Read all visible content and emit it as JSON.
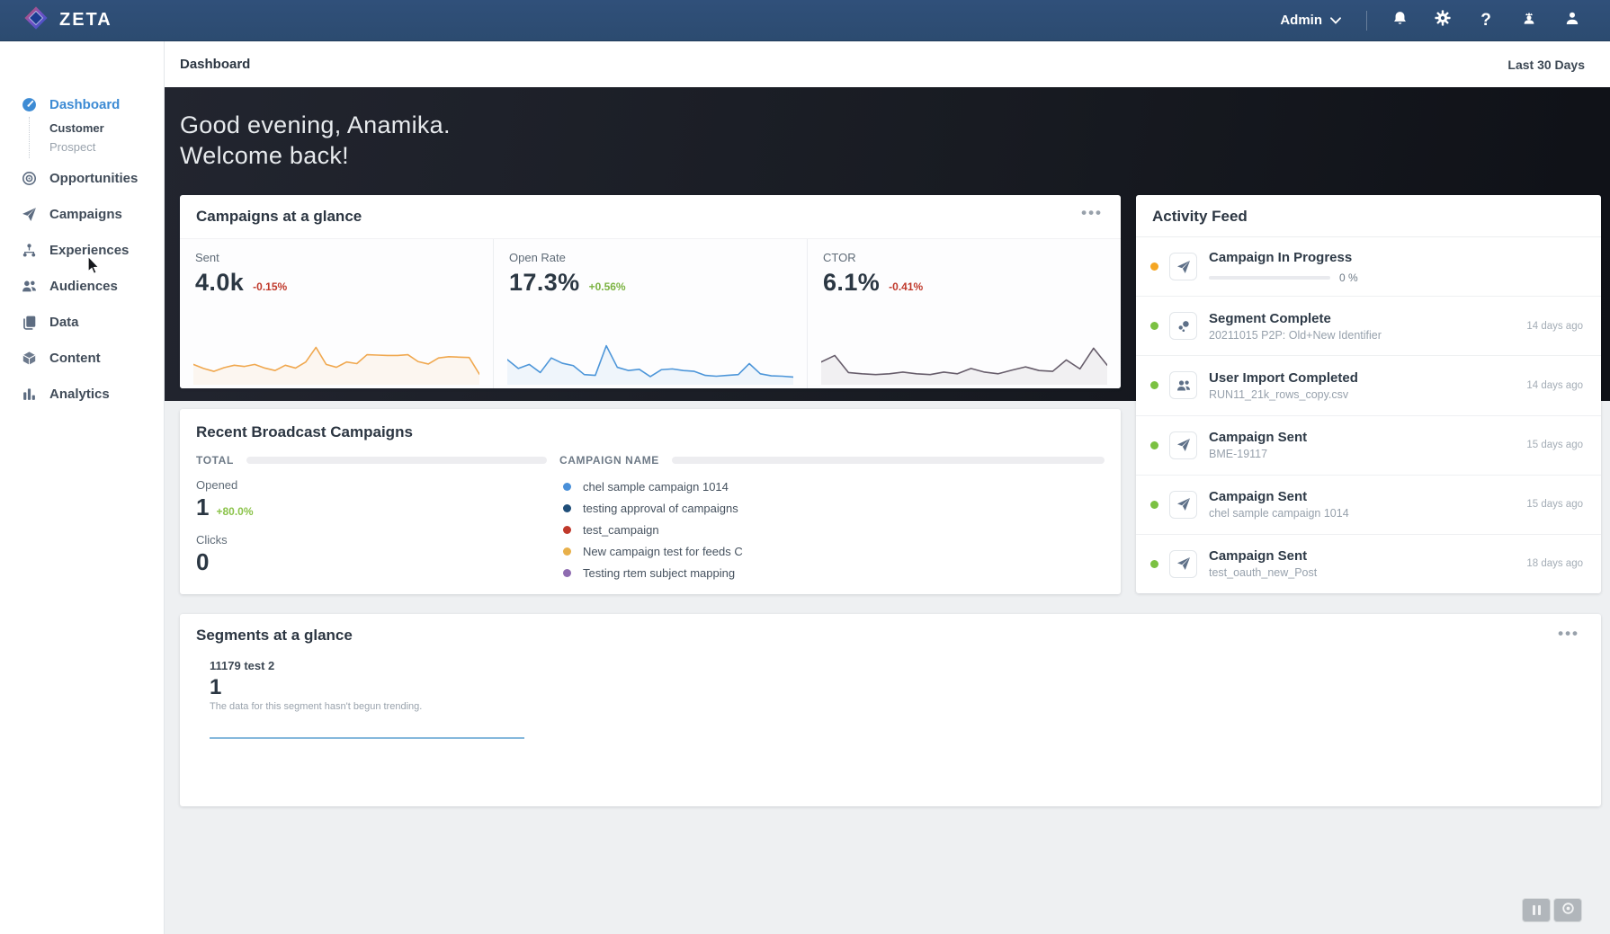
{
  "brand": {
    "name": "ZETA"
  },
  "topbar": {
    "user_menu_label": "Admin",
    "icons": [
      "bell-icon",
      "gear-icon",
      "help-icon",
      "admin-user-icon",
      "profile-icon"
    ]
  },
  "sidebar": {
    "items": [
      {
        "label": "Dashboard",
        "icon": "gauge",
        "active": true,
        "children": [
          "Customer",
          "Prospect"
        ]
      },
      {
        "label": "Opportunities",
        "icon": "target"
      },
      {
        "label": "Campaigns",
        "icon": "paper-plane"
      },
      {
        "label": "Experiences",
        "icon": "flow"
      },
      {
        "label": "Audiences",
        "icon": "users"
      },
      {
        "label": "Data",
        "icon": "files"
      },
      {
        "label": "Content",
        "icon": "cube"
      },
      {
        "label": "Analytics",
        "icon": "bar-chart"
      }
    ]
  },
  "header": {
    "title": "Dashboard",
    "date_range": "Last 30 Days"
  },
  "hero": {
    "line1": "Good evening, Anamika.",
    "line2": "Welcome back!"
  },
  "campaigns_glance": {
    "title": "Campaigns at a glance",
    "metrics": [
      {
        "label": "Sent",
        "value": "4.0k",
        "delta": "-0.15%",
        "delta_color": "#c0392b",
        "line_color": "#f0a84f",
        "sparkline": [
          44,
          34,
          27,
          36,
          42,
          39,
          44,
          35,
          29,
          42,
          35,
          50,
          86,
          44,
          37,
          50,
          46,
          68,
          67,
          66,
          66,
          68,
          51,
          45,
          60,
          63,
          62,
          61,
          20
        ]
      },
      {
        "label": "Open Rate",
        "value": "17.3%",
        "delta": "+0.56%",
        "delta_color": "#7cb342",
        "line_color": "#4d96d9",
        "sparkline": [
          56,
          34,
          44,
          24,
          60,
          47,
          41,
          19,
          17,
          90,
          37,
          29,
          32,
          14,
          31,
          33,
          29,
          27,
          17,
          15,
          17,
          19,
          46,
          21,
          16,
          15,
          13
        ]
      },
      {
        "label": "CTOR",
        "value": "6.1%",
        "delta": "-0.41%",
        "delta_color": "#c0392b",
        "line_color": "#675d6b",
        "sparkline": [
          50,
          66,
          24,
          21,
          19,
          21,
          25,
          21,
          19,
          25,
          21,
          34,
          25,
          21,
          30,
          38,
          29,
          27,
          55,
          33,
          84,
          42
        ]
      }
    ]
  },
  "recent_broadcast": {
    "title": "Recent Broadcast Campaigns",
    "total_label": "TOTAL",
    "campaign_name_label": "CAMPAIGN NAME",
    "stats": [
      {
        "label": "Opened",
        "value": "1",
        "delta": "+80.0%",
        "delta_color": "#8bc34a"
      },
      {
        "label": "Clicks",
        "value": "0"
      }
    ],
    "campaigns": [
      {
        "name": "chel sample campaign 1014",
        "color": "#4a90d9"
      },
      {
        "name": "testing approval of campaigns",
        "color": "#1f4e79"
      },
      {
        "name": "test_campaign",
        "color": "#c0392b"
      },
      {
        "name": "New campaign test for feeds C",
        "color": "#e8b04a"
      },
      {
        "name": "Testing rtem subject mapping",
        "color": "#8e6bb0"
      }
    ]
  },
  "activity_feed": {
    "title": "Activity Feed",
    "items": [
      {
        "title": "Campaign In Progress",
        "subtitle": "",
        "time": "",
        "dot_color": "#f5a623",
        "icon": "paper-plane",
        "progress": "0 %"
      },
      {
        "title": "Segment Complete",
        "subtitle": "20211015 P2P: Old+New Identifier",
        "time": "14 days ago",
        "dot_color": "#7bc142",
        "icon": "segment"
      },
      {
        "title": "User Import Completed",
        "subtitle": "RUN11_21k_rows_copy.csv",
        "time": "14 days ago",
        "dot_color": "#7bc142",
        "icon": "users"
      },
      {
        "title": "Campaign Sent",
        "subtitle": "BME-19117",
        "time": "15 days ago",
        "dot_color": "#7bc142",
        "icon": "paper-plane"
      },
      {
        "title": "Campaign Sent",
        "subtitle": "chel sample campaign 1014",
        "time": "15 days ago",
        "dot_color": "#7bc142",
        "icon": "paper-plane"
      },
      {
        "title": "Campaign Sent",
        "subtitle": "test_oauth_new_Post",
        "time": "18 days ago",
        "dot_color": "#7bc142",
        "icon": "paper-plane"
      }
    ]
  },
  "segments_glance": {
    "title": "Segments at a glance",
    "segment_name": "11179 test 2",
    "segment_value": "1",
    "segment_note": "The data for this segment hasn't begun trending.",
    "line_color": "#85b8dc"
  }
}
